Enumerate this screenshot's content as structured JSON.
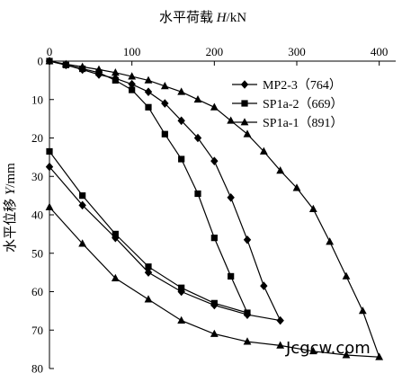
{
  "chart_data": {
    "type": "line",
    "xlabel": "水平荷载 H/kN",
    "ylabel": "水平位移 Y/mm",
    "x_axis_position": "top",
    "y_axis_inverted": true,
    "xlim": [
      0,
      420
    ],
    "ylim": [
      0,
      80
    ],
    "x_ticks": [
      "0",
      "100",
      "200",
      "300",
      "400"
    ],
    "y_ticks": [
      "0",
      "10",
      "20",
      "30",
      "40",
      "50",
      "60",
      "70",
      "80"
    ],
    "legend_position": "top-right",
    "series": [
      {
        "name": "MP2-3（764）",
        "marker": "diamond",
        "points": [
          [
            0,
            0
          ],
          [
            20,
            1
          ],
          [
            40,
            2.2
          ],
          [
            60,
            3.5
          ],
          [
            80,
            4.5
          ],
          [
            100,
            6
          ],
          [
            120,
            8
          ],
          [
            140,
            11
          ],
          [
            160,
            15.5
          ],
          [
            180,
            20
          ],
          [
            200,
            26
          ],
          [
            220,
            35.5
          ],
          [
            240,
            46.5
          ],
          [
            260,
            58.5
          ],
          [
            280,
            67.5
          ],
          [
            240,
            66
          ],
          [
            200,
            63.5
          ],
          [
            160,
            60
          ],
          [
            120,
            55
          ],
          [
            80,
            46
          ],
          [
            40,
            37.5
          ],
          [
            0,
            27.5
          ]
        ]
      },
      {
        "name": "SP1a-2（669）",
        "marker": "square",
        "points": [
          [
            0,
            0
          ],
          [
            20,
            1
          ],
          [
            40,
            2
          ],
          [
            60,
            3
          ],
          [
            80,
            5
          ],
          [
            100,
            7.5
          ],
          [
            120,
            12
          ],
          [
            140,
            19
          ],
          [
            160,
            25.5
          ],
          [
            180,
            34.5
          ],
          [
            200,
            46
          ],
          [
            220,
            56
          ],
          [
            240,
            65.5
          ],
          [
            200,
            63
          ],
          [
            160,
            59
          ],
          [
            120,
            53.5
          ],
          [
            80,
            45
          ],
          [
            40,
            35
          ],
          [
            0,
            23.5
          ]
        ]
      },
      {
        "name": "SP1a-1（891）",
        "marker": "triangle",
        "points": [
          [
            0,
            0
          ],
          [
            20,
            0.8
          ],
          [
            40,
            1.5
          ],
          [
            60,
            2.2
          ],
          [
            80,
            3
          ],
          [
            100,
            4
          ],
          [
            120,
            5
          ],
          [
            140,
            6.5
          ],
          [
            160,
            8
          ],
          [
            180,
            10
          ],
          [
            200,
            12
          ],
          [
            220,
            15.5
          ],
          [
            240,
            19
          ],
          [
            260,
            23.5
          ],
          [
            280,
            28.5
          ],
          [
            300,
            33
          ],
          [
            320,
            38.5
          ],
          [
            340,
            47
          ],
          [
            360,
            56
          ],
          [
            380,
            65
          ],
          [
            400,
            77
          ],
          [
            360,
            76.5
          ],
          [
            320,
            75.5
          ],
          [
            280,
            74
          ],
          [
            240,
            73
          ],
          [
            200,
            71
          ],
          [
            160,
            67.5
          ],
          [
            120,
            62
          ],
          [
            80,
            56.5
          ],
          [
            40,
            47.5
          ],
          [
            0,
            38
          ]
        ]
      }
    ]
  },
  "watermark": "Jcgcw.com",
  "colors": {
    "line": "#000000",
    "background": "#ffffff"
  }
}
